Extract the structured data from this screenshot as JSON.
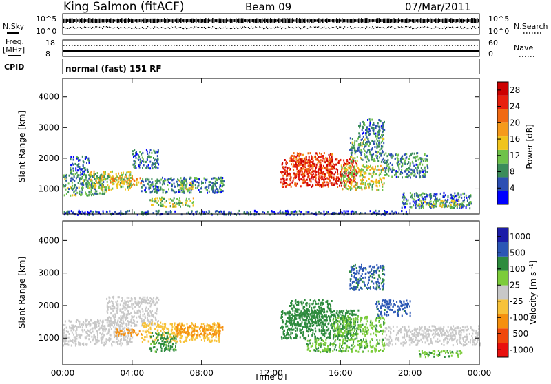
{
  "header": {
    "site": "King Salmon (fitACF)",
    "beam": "Beam 09",
    "date": "07/Mar/2011"
  },
  "status_labels": {
    "nsky": "N.Sky",
    "nsearch": "N.Search",
    "freq_line1": "Freq.",
    "freq_line2": "[MHz]",
    "nave": "Nave",
    "cpid": "CPID",
    "mode": "normal (fast) 151 RF"
  },
  "status_ticks": {
    "noise_left": [
      "10^5",
      "10^0"
    ],
    "noise_right": [
      "10^5",
      "10^0"
    ],
    "freq_left": [
      "18",
      "8"
    ],
    "nave_right": [
      "60",
      "0"
    ]
  },
  "colors": {
    "power_scale": [
      "#0000ff",
      "#2c4fb3",
      "#3b8c5a",
      "#6fc24a",
      "#f0c41c",
      "#f59a1c",
      "#f06a14",
      "#e8200e",
      "#cc0000"
    ],
    "velocity_scale": [
      "#e8100e",
      "#f0480c",
      "#f5900f",
      "#f7c23a",
      "#c8c8c8",
      "#7ccc3a",
      "#2e8b3e",
      "#2b56b5",
      "#1c1ca8"
    ]
  },
  "chart_data": [
    {
      "type": "heatmap",
      "title": "",
      "xlabel": "Time UT",
      "ylabel": "Slant Range [km]",
      "x_ticks": [
        "00:00",
        "04:00",
        "08:00",
        "12:00",
        "16:00",
        "20:00",
        "00:00"
      ],
      "xlim_hours": [
        0,
        24
      ],
      "y_ticks": [
        1000,
        2000,
        3000,
        4000
      ],
      "ylim": [
        180,
        4600
      ],
      "colorbar": {
        "label": "Power [dB]",
        "ticks": [
          4,
          8,
          12,
          16,
          20,
          24,
          28
        ],
        "range": [
          0,
          30
        ]
      },
      "regions": [
        {
          "t0": 0.0,
          "t1": 2.5,
          "r0": 800,
          "r1": 1500,
          "value": 9
        },
        {
          "t0": 0.4,
          "t1": 1.5,
          "r0": 1500,
          "r1": 2100,
          "value": 6
        },
        {
          "t0": 1.5,
          "t1": 4.0,
          "r0": 1000,
          "r1": 1600,
          "value": 13
        },
        {
          "t0": 2.7,
          "t1": 4.5,
          "r0": 1150,
          "r1": 1400,
          "value": 18
        },
        {
          "t0": 4.0,
          "t1": 5.5,
          "r0": 1700,
          "r1": 2300,
          "value": 7
        },
        {
          "t0": 4.5,
          "t1": 9.3,
          "r0": 900,
          "r1": 1400,
          "value": 7
        },
        {
          "t0": 6.5,
          "t1": 7.5,
          "r0": 1000,
          "r1": 1300,
          "value": 14
        },
        {
          "t0": 5.0,
          "t1": 7.5,
          "r0": 450,
          "r1": 750,
          "value": 12
        },
        {
          "t0": 0.0,
          "t1": 9.0,
          "r0": 180,
          "r1": 320,
          "value": 5
        },
        {
          "t0": 12.5,
          "t1": 17.0,
          "r0": 1100,
          "r1": 2000,
          "value": 26
        },
        {
          "t0": 13.0,
          "t1": 15.5,
          "r0": 1400,
          "r1": 2200,
          "value": 24
        },
        {
          "t0": 16.0,
          "t1": 18.5,
          "r0": 1000,
          "r1": 1800,
          "value": 14
        },
        {
          "t0": 16.5,
          "t1": 18.5,
          "r0": 1900,
          "r1": 2700,
          "value": 9
        },
        {
          "t0": 17.0,
          "t1": 18.5,
          "r0": 2700,
          "r1": 3300,
          "value": 7
        },
        {
          "t0": 18.5,
          "t1": 21.0,
          "r0": 1400,
          "r1": 2200,
          "value": 8
        },
        {
          "t0": 19.5,
          "t1": 23.5,
          "r0": 400,
          "r1": 900,
          "value": 7
        },
        {
          "t0": 20.5,
          "t1": 23.0,
          "r0": 450,
          "r1": 650,
          "value": 12
        },
        {
          "t0": 9.0,
          "t1": 20.0,
          "r0": 180,
          "r1": 320,
          "value": 5
        }
      ]
    },
    {
      "type": "heatmap",
      "title": "",
      "xlabel": "Time UT",
      "ylabel": "Slant Range [km]",
      "x_ticks": [
        "00:00",
        "04:00",
        "08:00",
        "12:00",
        "16:00",
        "20:00",
        "00:00"
      ],
      "xlim_hours": [
        0,
        24
      ],
      "y_ticks": [
        1000,
        2000,
        3000,
        4000
      ],
      "ylim": [
        180,
        4600
      ],
      "colorbar": {
        "label": "Velocity [m s^-1]",
        "ticks": [
          "1000",
          "500",
          "100",
          "25",
          "-25",
          "-100",
          "-500",
          "-1000"
        ]
      },
      "regions": [
        {
          "t0": 0.0,
          "t1": 4.0,
          "r0": 800,
          "r1": 1600,
          "value": 0
        },
        {
          "t0": 2.5,
          "t1": 5.5,
          "r0": 1400,
          "r1": 2300,
          "value": 0
        },
        {
          "t0": 4.5,
          "t1": 9.0,
          "r0": 900,
          "r1": 1500,
          "value": -50
        },
        {
          "t0": 5.0,
          "t1": 6.5,
          "r0": 600,
          "r1": 1200,
          "value": 150
        },
        {
          "t0": 6.5,
          "t1": 9.2,
          "r0": 1100,
          "r1": 1450,
          "value": -300
        },
        {
          "t0": 3.0,
          "t1": 4.5,
          "r0": 1100,
          "r1": 1300,
          "value": -200
        },
        {
          "t0": 12.5,
          "t1": 17.0,
          "r0": 1000,
          "r1": 1900,
          "value": 300
        },
        {
          "t0": 13.0,
          "t1": 15.5,
          "r0": 1400,
          "r1": 2200,
          "value": 300
        },
        {
          "t0": 15.5,
          "t1": 18.5,
          "r0": 1100,
          "r1": 1700,
          "value": 80
        },
        {
          "t0": 16.5,
          "t1": 18.5,
          "r0": 2500,
          "r1": 3300,
          "value": 600
        },
        {
          "t0": 18.0,
          "t1": 20.0,
          "r0": 1700,
          "r1": 2200,
          "value": 700
        },
        {
          "t0": 18.5,
          "t1": 24.0,
          "r0": 800,
          "r1": 1400,
          "value": 0
        },
        {
          "t0": 14.0,
          "t1": 18.5,
          "r0": 600,
          "r1": 1000,
          "value": 80
        },
        {
          "t0": 20.5,
          "t1": 23.0,
          "r0": 450,
          "r1": 650,
          "value": 80
        }
      ]
    }
  ]
}
